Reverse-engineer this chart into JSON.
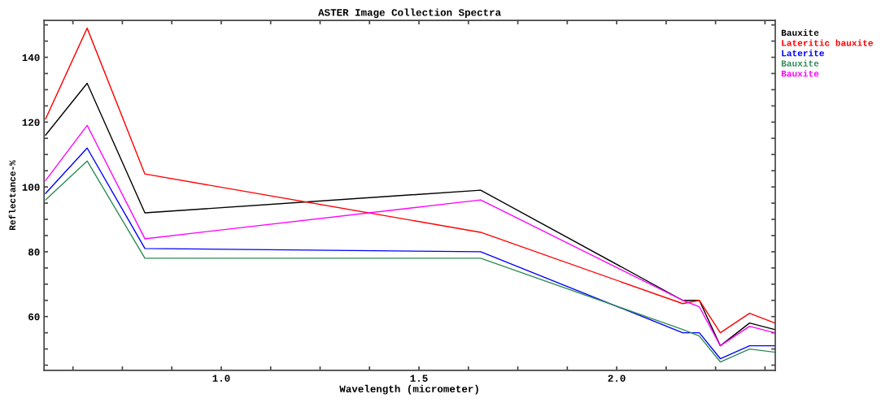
{
  "chart_data": {
    "type": "line",
    "title": "ASTER Image Collection Spectra",
    "xlabel": "Wavelength (micrometer)",
    "ylabel": "Reflectance-%",
    "x": [
      0.556,
      0.661,
      0.807,
      1.656,
      2.167,
      2.209,
      2.262,
      2.336,
      2.4
    ],
    "series": [
      {
        "name": "Bauxite",
        "color": "#000000",
        "values": [
          116,
          132,
          92,
          99,
          65,
          65,
          51,
          58,
          56
        ]
      },
      {
        "name": "Lateritic bauxite",
        "color": "#ff0000",
        "values": [
          121,
          149,
          104,
          86,
          64,
          65,
          55,
          61,
          58
        ]
      },
      {
        "name": "Laterite",
        "color": "#0000ff",
        "values": [
          98,
          112,
          81,
          80,
          55,
          55,
          47,
          51,
          51
        ]
      },
      {
        "name": "Bauxite",
        "color": "#2e8b57",
        "values": [
          96,
          108,
          78,
          78,
          56,
          54,
          46,
          50,
          49
        ]
      },
      {
        "name": "Bauxite",
        "color": "#ff00ff",
        "values": [
          102,
          119,
          84,
          96,
          65,
          63,
          51,
          57,
          55
        ]
      }
    ],
    "xlim": [
      0.552,
      2.401
    ],
    "ylim": [
      43.4,
      151.4
    ],
    "xticks": [
      {
        "value": 0.625,
        "label": null
      },
      {
        "value": 0.75,
        "label": null
      },
      {
        "value": 0.875,
        "label": null
      },
      {
        "value": 1.0,
        "label": "1.0"
      },
      {
        "value": 1.125,
        "label": null
      },
      {
        "value": 1.25,
        "label": null
      },
      {
        "value": 1.375,
        "label": null
      },
      {
        "value": 1.5,
        "label": "1.5"
      },
      {
        "value": 1.625,
        "label": null
      },
      {
        "value": 1.75,
        "label": null
      },
      {
        "value": 1.875,
        "label": null
      },
      {
        "value": 2.0,
        "label": "2.0"
      },
      {
        "value": 2.125,
        "label": null
      },
      {
        "value": 2.25,
        "label": null
      },
      {
        "value": 2.375,
        "label": null
      }
    ],
    "yticks": [
      {
        "value": 45,
        "label": null
      },
      {
        "value": 50,
        "label": null
      },
      {
        "value": 55,
        "label": null
      },
      60,
      {
        "value": 65,
        "label": null
      },
      {
        "value": 70,
        "label": null
      },
      {
        "value": 75,
        "label": null
      },
      80,
      {
        "value": 85,
        "label": null
      },
      {
        "value": 90,
        "label": null
      },
      {
        "value": 95,
        "label": null
      },
      100,
      {
        "value": 105,
        "label": null
      },
      {
        "value": 110,
        "label": null
      },
      {
        "value": 115,
        "label": null
      },
      120,
      {
        "value": 125,
        "label": null
      },
      {
        "value": 130,
        "label": null
      },
      {
        "value": 135,
        "label": null
      },
      140,
      {
        "value": 145,
        "label": null
      },
      {
        "value": 150,
        "label": null
      }
    ],
    "grid": false,
    "legend": "top right",
    "marker": "none",
    "line_style": "solid"
  }
}
